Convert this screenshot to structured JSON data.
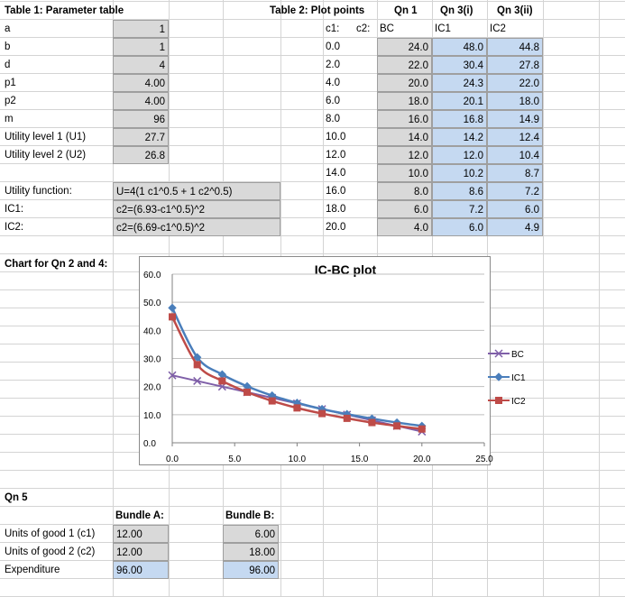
{
  "table1": {
    "title": "Table 1: Parameter table",
    "rows": [
      {
        "label": "a",
        "value": "1"
      },
      {
        "label": "b",
        "value": "1"
      },
      {
        "label": "d",
        "value": "4"
      },
      {
        "label": "p1",
        "value": "4.00"
      },
      {
        "label": "p2",
        "value": "4.00"
      },
      {
        "label": "m",
        "value": "96"
      },
      {
        "label": "Utility level 1 (U1)",
        "value": "27.7"
      },
      {
        "label": "Utility level 2 (U2)",
        "value": "26.8"
      }
    ],
    "functions": [
      {
        "label": "Utility function:",
        "value": "U=4(1 c1^0.5 + 1 c2^0.5)"
      },
      {
        "label": "IC1:",
        "value": "c2=(6.93-c1^0.5)^2"
      },
      {
        "label": "IC2:",
        "value": "c2=(6.69-c1^0.5)^2"
      }
    ]
  },
  "table2": {
    "title": "Table 2: Plot points",
    "qn1": "Qn 1",
    "qn3i": "Qn 3(i)",
    "qn3ii": "Qn 3(ii)",
    "c1_label": "c1:",
    "c2_label": "c2:",
    "bc_label": "BC",
    "ic1_label": "IC1",
    "ic2_label": "IC2",
    "rows": [
      {
        "c1": "0.0",
        "bc": "24.0",
        "ic1": "48.0",
        "ic2": "44.8"
      },
      {
        "c1": "2.0",
        "bc": "22.0",
        "ic1": "30.4",
        "ic2": "27.8"
      },
      {
        "c1": "4.0",
        "bc": "20.0",
        "ic1": "24.3",
        "ic2": "22.0"
      },
      {
        "c1": "6.0",
        "bc": "18.0",
        "ic1": "20.1",
        "ic2": "18.0"
      },
      {
        "c1": "8.0",
        "bc": "16.0",
        "ic1": "16.8",
        "ic2": "14.9"
      },
      {
        "c1": "10.0",
        "bc": "14.0",
        "ic1": "14.2",
        "ic2": "12.4"
      },
      {
        "c1": "12.0",
        "bc": "12.0",
        "ic1": "12.0",
        "ic2": "10.4"
      },
      {
        "c1": "14.0",
        "bc": "10.0",
        "ic1": "10.2",
        "ic2": "8.7"
      },
      {
        "c1": "16.0",
        "bc": "8.0",
        "ic1": "8.6",
        "ic2": "7.2"
      },
      {
        "c1": "18.0",
        "bc": "6.0",
        "ic1": "7.2",
        "ic2": "6.0"
      },
      {
        "c1": "20.0",
        "bc": "4.0",
        "ic1": "6.0",
        "ic2": "4.9"
      }
    ]
  },
  "chart_label": "Chart for Qn 2 and 4:",
  "chart_data": {
    "type": "line",
    "title": "IC-BC plot",
    "x": [
      0,
      2,
      4,
      6,
      8,
      10,
      12,
      14,
      16,
      18,
      20
    ],
    "series": [
      {
        "name": "BC",
        "values": [
          24.0,
          22.0,
          20.0,
          18.0,
          16.0,
          14.0,
          12.0,
          10.0,
          8.0,
          6.0,
          4.0
        ],
        "color": "#7f5fa8",
        "marker": "x"
      },
      {
        "name": "IC1",
        "values": [
          48.0,
          30.4,
          24.3,
          20.1,
          16.8,
          14.2,
          12.0,
          10.2,
          8.6,
          7.2,
          6.0
        ],
        "color": "#4a7ebb",
        "marker": "diamond"
      },
      {
        "name": "IC2",
        "values": [
          44.8,
          27.8,
          22.0,
          18.0,
          14.9,
          12.4,
          10.4,
          8.7,
          7.2,
          6.0,
          4.9
        ],
        "color": "#be4b48",
        "marker": "square"
      }
    ],
    "xlim": [
      0,
      25
    ],
    "ylim": [
      0,
      60
    ],
    "xticks": [
      "0.0",
      "5.0",
      "10.0",
      "15.0",
      "20.0",
      "25.0"
    ],
    "yticks": [
      "0.0",
      "10.0",
      "20.0",
      "30.0",
      "40.0",
      "50.0",
      "60.0"
    ],
    "grid": true,
    "legend": "right"
  },
  "qn5": {
    "title": "Qn 5",
    "bundle_a": "Bundle A:",
    "bundle_b": "Bundle B:",
    "rows": [
      {
        "label": "Units of good 1 (c1)",
        "a": "12.00",
        "b": "6.00"
      },
      {
        "label": "Units of good 2 (c2)",
        "a": "12.00",
        "b": "18.00"
      },
      {
        "label": "Expenditure",
        "a": "96.00",
        "b": "96.00"
      }
    ]
  }
}
